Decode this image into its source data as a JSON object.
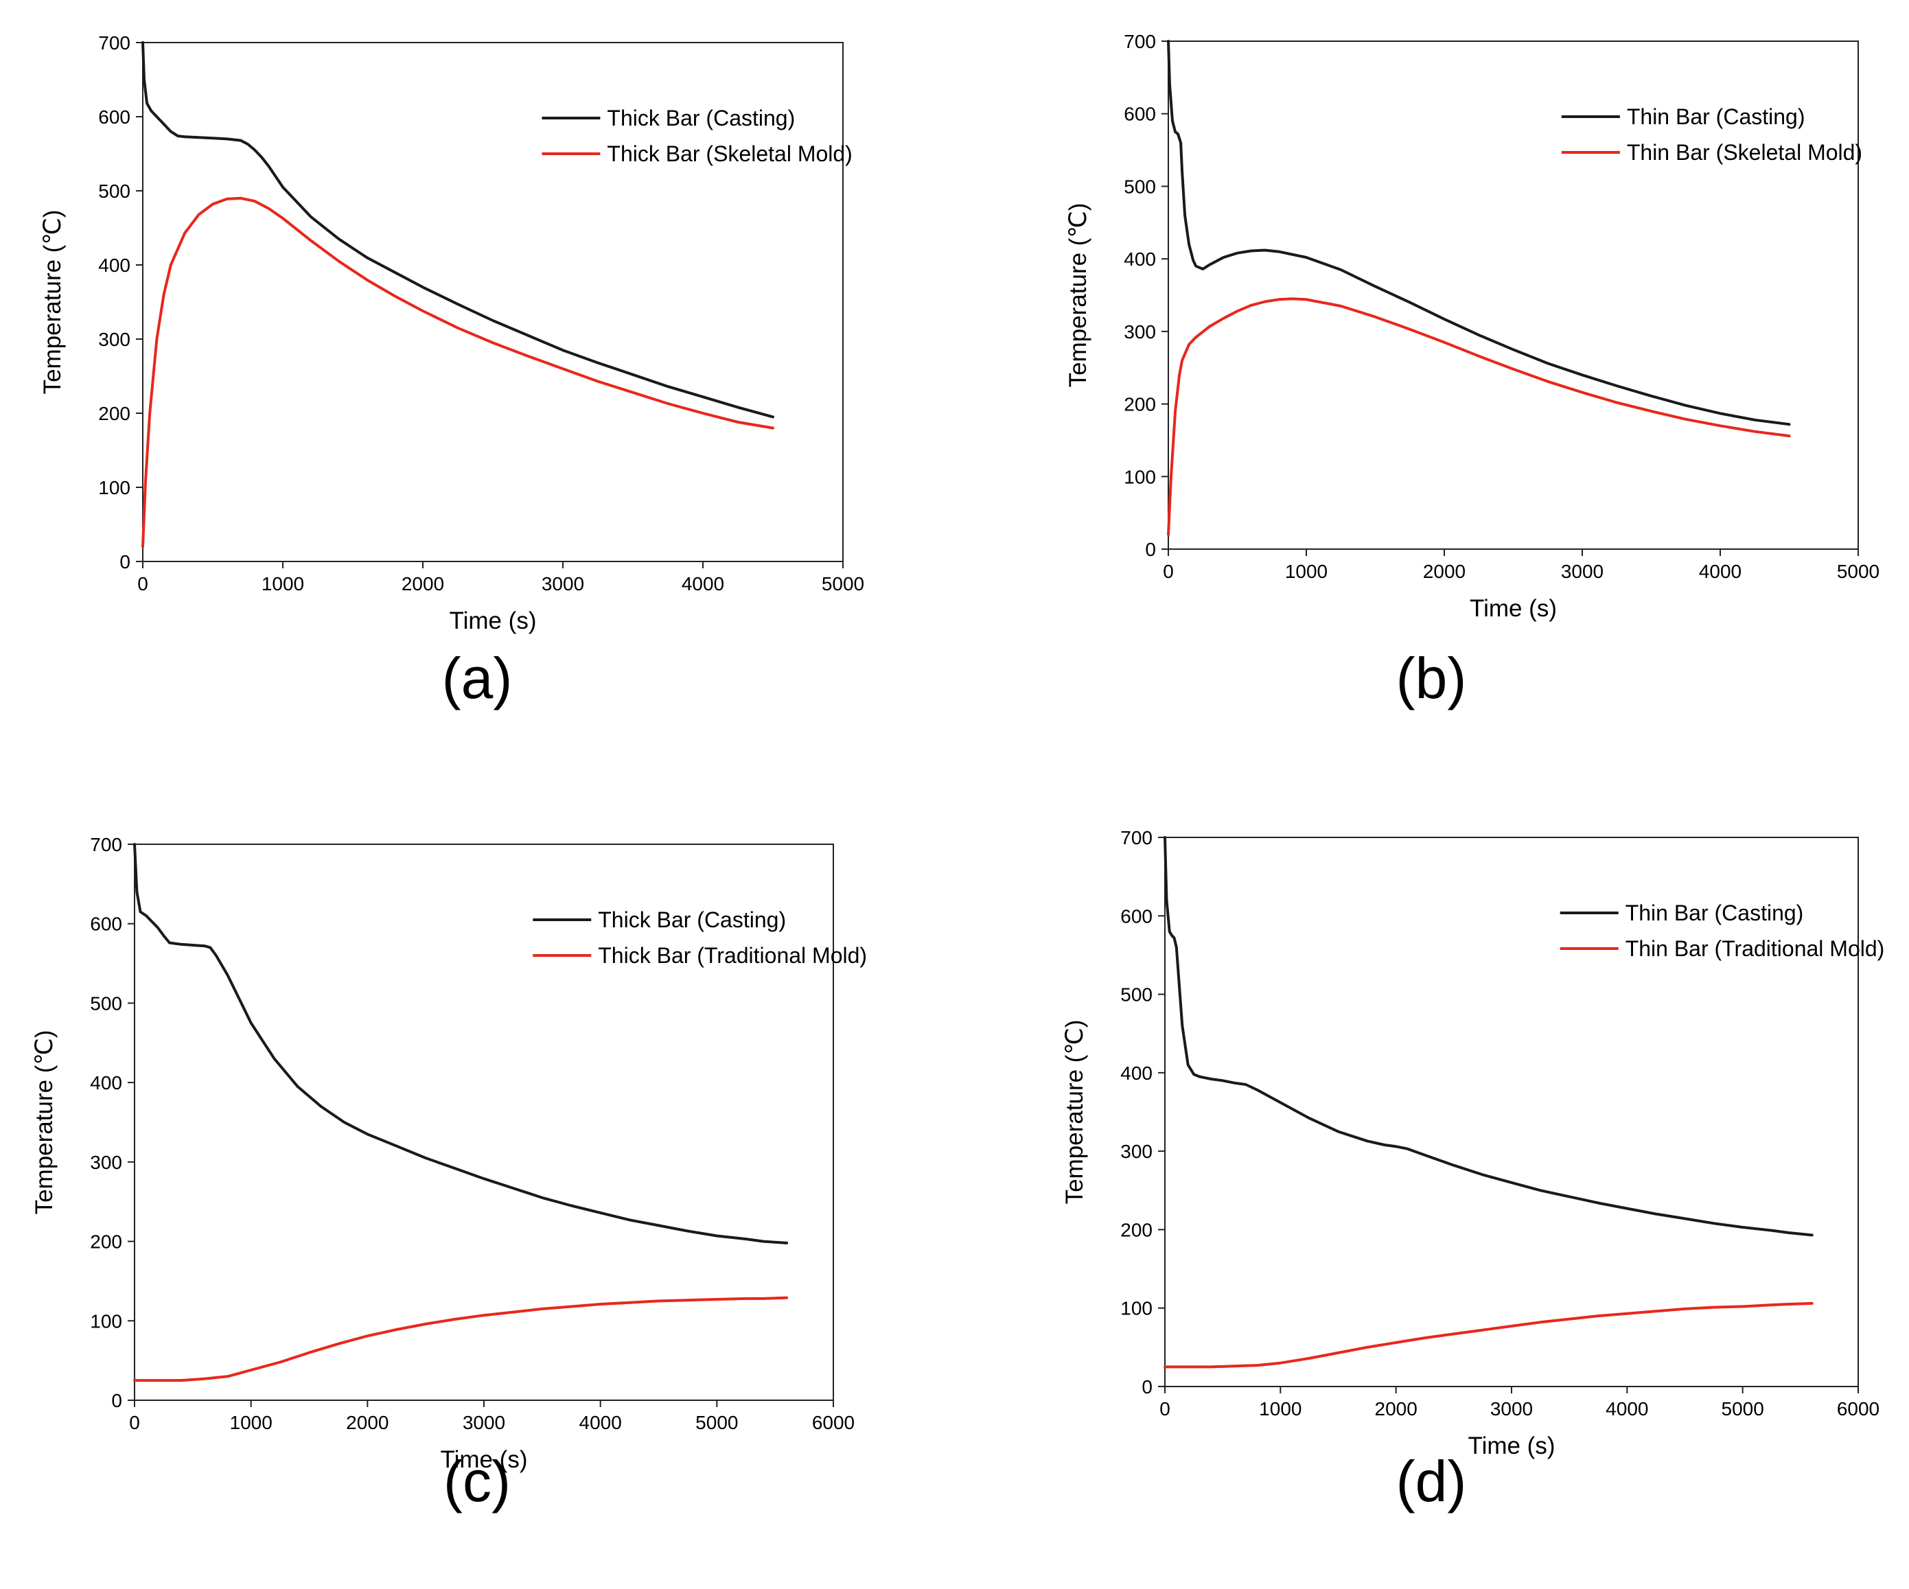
{
  "panels": [
    {
      "id": "a",
      "panel_label": "(a)",
      "legend_position": "top-right"
    },
    {
      "id": "b",
      "panel_label": "(b)",
      "legend_position": "top-right"
    },
    {
      "id": "c",
      "panel_label": "(c)",
      "legend_position": "top-right"
    },
    {
      "id": "d",
      "panel_label": "(d)",
      "legend_position": "top-right"
    }
  ],
  "chart_data": [
    {
      "type": "line",
      "title": "",
      "xlabel": "Time (s)",
      "ylabel": "Temperature (℃)",
      "xlim": [
        0,
        5000
      ],
      "ylim": [
        0,
        700
      ],
      "xticks": [
        0,
        1000,
        2000,
        3000,
        4000,
        5000
      ],
      "yticks": [
        0,
        100,
        200,
        300,
        400,
        500,
        600,
        700
      ],
      "grid": false,
      "series": [
        {
          "name": "Thick Bar (Casting)",
          "color": "#1a1a1a",
          "x": [
            0,
            10,
            30,
            60,
            100,
            150,
            200,
            250,
            300,
            400,
            500,
            600,
            700,
            750,
            800,
            850,
            900,
            1000,
            1200,
            1400,
            1600,
            1800,
            2000,
            2250,
            2500,
            2750,
            3000,
            3250,
            3500,
            3750,
            4000,
            4250,
            4500
          ],
          "y": [
            700,
            650,
            618,
            608,
            600,
            590,
            580,
            574,
            573,
            572,
            571,
            570,
            568,
            563,
            555,
            545,
            533,
            505,
            465,
            435,
            410,
            390,
            370,
            347,
            325,
            305,
            285,
            268,
            252,
            236,
            222,
            208,
            195
          ]
        },
        {
          "name": "Thick Bar (Skeletal Mold)",
          "color": "#e8271c",
          "x": [
            0,
            20,
            50,
            100,
            150,
            200,
            300,
            400,
            500,
            600,
            700,
            800,
            900,
            1000,
            1200,
            1400,
            1600,
            1800,
            2000,
            2250,
            2500,
            2750,
            3000,
            3250,
            3500,
            3750,
            4000,
            4250,
            4500
          ],
          "y": [
            20,
            110,
            200,
            300,
            360,
            400,
            443,
            468,
            482,
            489,
            490,
            486,
            476,
            463,
            433,
            405,
            380,
            358,
            338,
            315,
            295,
            277,
            260,
            243,
            228,
            213,
            200,
            188,
            180
          ]
        }
      ]
    },
    {
      "type": "line",
      "title": "",
      "xlabel": "Time (s)",
      "ylabel": "Temperature (℃)",
      "xlim": [
        0,
        5000
      ],
      "ylim": [
        0,
        700
      ],
      "xticks": [
        0,
        1000,
        2000,
        3000,
        4000,
        5000
      ],
      "yticks": [
        0,
        100,
        200,
        300,
        400,
        500,
        600,
        700
      ],
      "grid": false,
      "series": [
        {
          "name": "Thin Bar (Casting)",
          "color": "#1a1a1a",
          "x": [
            0,
            10,
            30,
            50,
            70,
            90,
            100,
            120,
            150,
            180,
            200,
            250,
            300,
            400,
            500,
            600,
            700,
            800,
            1000,
            1250,
            1500,
            1750,
            2000,
            2250,
            2500,
            2750,
            3000,
            3250,
            3500,
            3750,
            4000,
            4250,
            4500
          ],
          "y": [
            700,
            640,
            590,
            575,
            572,
            560,
            520,
            460,
            420,
            398,
            390,
            386,
            392,
            402,
            408,
            411,
            412,
            410,
            402,
            385,
            362,
            340,
            317,
            295,
            275,
            256,
            240,
            225,
            211,
            198,
            187,
            178,
            172
          ]
        },
        {
          "name": "Thin Bar (Skeletal Mold)",
          "color": "#e8271c",
          "x": [
            0,
            20,
            50,
            80,
            100,
            150,
            200,
            300,
            400,
            500,
            600,
            700,
            800,
            900,
            1000,
            1250,
            1500,
            1750,
            2000,
            2250,
            2500,
            2750,
            3000,
            3250,
            3500,
            3750,
            4000,
            4250,
            4500
          ],
          "y": [
            20,
            100,
            190,
            240,
            260,
            282,
            292,
            307,
            318,
            328,
            336,
            341,
            344,
            345,
            344,
            335,
            320,
            303,
            285,
            266,
            248,
            231,
            216,
            202,
            190,
            179,
            170,
            162,
            156
          ]
        }
      ]
    },
    {
      "type": "line",
      "title": "",
      "xlabel": "Time (s)",
      "ylabel": "Temperature (℃)",
      "xlim": [
        0,
        6000
      ],
      "ylim": [
        0,
        700
      ],
      "xticks": [
        0,
        1000,
        2000,
        3000,
        4000,
        5000,
        6000
      ],
      "yticks": [
        0,
        100,
        200,
        300,
        400,
        500,
        600,
        700
      ],
      "grid": false,
      "series": [
        {
          "name": "Thick Bar (Casting)",
          "color": "#1a1a1a",
          "x": [
            0,
            20,
            50,
            100,
            200,
            250,
            300,
            400,
            500,
            600,
            650,
            700,
            800,
            900,
            1000,
            1200,
            1400,
            1600,
            1800,
            2000,
            2250,
            2500,
            2750,
            3000,
            3250,
            3500,
            3750,
            4000,
            4250,
            4500,
            4750,
            5000,
            5250,
            5400,
            5600
          ],
          "y": [
            700,
            640,
            615,
            610,
            595,
            585,
            576,
            574,
            573,
            572,
            570,
            560,
            535,
            505,
            475,
            430,
            395,
            370,
            350,
            335,
            320,
            305,
            292,
            279,
            267,
            255,
            245,
            236,
            227,
            220,
            213,
            207,
            203,
            200,
            198
          ]
        },
        {
          "name": "Thick Bar (Traditional Mold)",
          "color": "#e8271c",
          "x": [
            0,
            200,
            400,
            600,
            800,
            1000,
            1250,
            1500,
            1750,
            2000,
            2250,
            2500,
            2750,
            3000,
            3250,
            3500,
            3750,
            4000,
            4250,
            4500,
            4750,
            5000,
            5250,
            5400,
            5600
          ],
          "y": [
            25,
            25,
            25,
            27,
            30,
            38,
            48,
            60,
            71,
            81,
            89,
            96,
            102,
            107,
            111,
            115,
            118,
            121,
            123,
            125,
            126,
            127,
            128,
            128,
            129
          ]
        }
      ]
    },
    {
      "type": "line",
      "title": "",
      "xlabel": "Time (s)",
      "ylabel": "Temperature (℃)",
      "xlim": [
        0,
        6000
      ],
      "ylim": [
        0,
        700
      ],
      "xticks": [
        0,
        1000,
        2000,
        3000,
        4000,
        5000,
        6000
      ],
      "yticks": [
        0,
        100,
        200,
        300,
        400,
        500,
        600,
        700
      ],
      "grid": false,
      "series": [
        {
          "name": "Thin Bar (Casting)",
          "color": "#1a1a1a",
          "x": [
            0,
            15,
            40,
            60,
            80,
            100,
            120,
            150,
            200,
            250,
            300,
            400,
            500,
            600,
            700,
            800,
            1000,
            1250,
            1500,
            1750,
            1900,
            2000,
            2100,
            2250,
            2500,
            2750,
            3000,
            3250,
            3500,
            3750,
            4000,
            4250,
            4500,
            4750,
            5000,
            5250,
            5400,
            5600
          ],
          "y": [
            700,
            620,
            580,
            575,
            572,
            560,
            520,
            460,
            410,
            398,
            395,
            392,
            390,
            387,
            385,
            378,
            362,
            342,
            325,
            313,
            308,
            306,
            303,
            295,
            282,
            270,
            260,
            250,
            242,
            234,
            227,
            220,
            214,
            208,
            203,
            199,
            196,
            193
          ]
        },
        {
          "name": "Thin Bar (Traditional Mold)",
          "color": "#e8271c",
          "x": [
            0,
            200,
            400,
            600,
            800,
            1000,
            1250,
            1500,
            1750,
            2000,
            2250,
            2500,
            2750,
            3000,
            3250,
            3500,
            3750,
            4000,
            4250,
            4500,
            4750,
            5000,
            5250,
            5400,
            5600
          ],
          "y": [
            25,
            25,
            25,
            26,
            27,
            30,
            36,
            43,
            50,
            56,
            62,
            67,
            72,
            77,
            82,
            86,
            90,
            93,
            96,
            99,
            101,
            102,
            104,
            105,
            106
          ]
        }
      ]
    }
  ]
}
